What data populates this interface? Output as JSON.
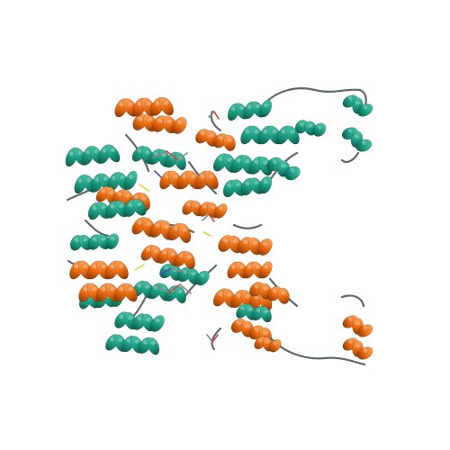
{
  "image": {
    "subject": "protein-ribbon-structure",
    "background_color": "#ffffff",
    "chain_colors": {
      "chain_a": "#1a9b80",
      "chain_b": "#e8690f"
    },
    "helix_highlight": "#ffffff",
    "coil_color": "#5f6b6b",
    "ligand_colors": {
      "carbon": "#8a8a8a",
      "oxygen": "#e0403a",
      "nitrogen": "#3a56c8",
      "sulfur": "#e8d23a"
    }
  }
}
